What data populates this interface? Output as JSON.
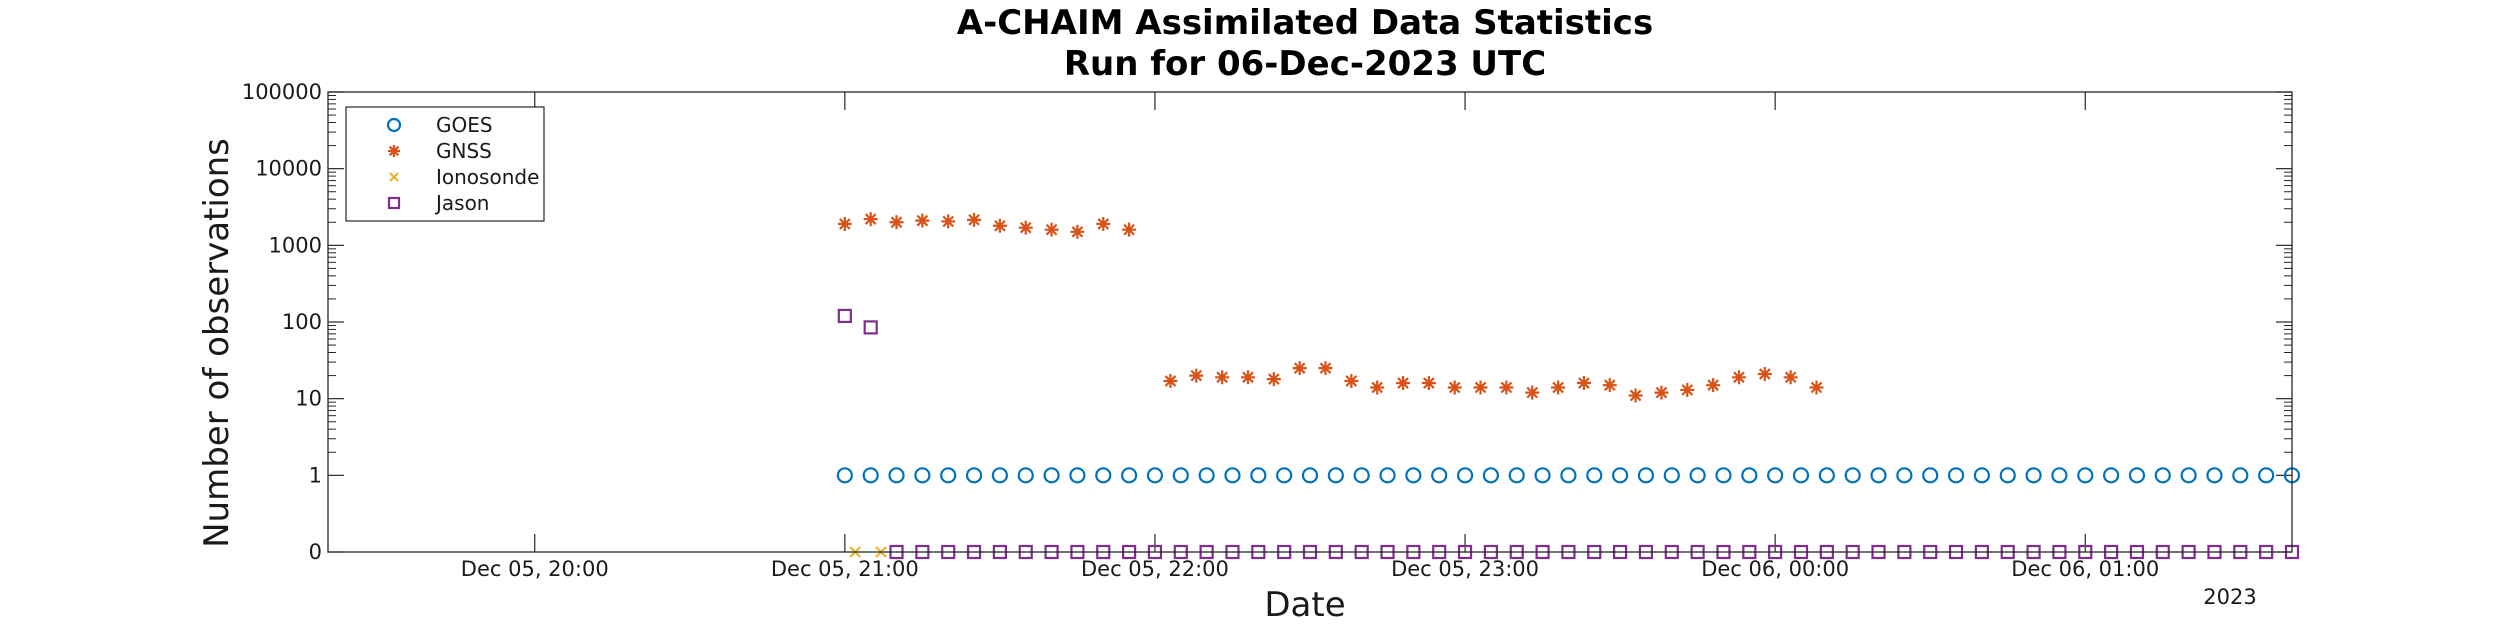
{
  "chart_data": {
    "type": "scatter",
    "title": "A-CHAIM Assimilated Data Statistics",
    "subtitle": "Run for 06-Dec-2023 UTC",
    "xlabel": "Date",
    "ylabel": "Number of observations",
    "x_year_label": "2023",
    "x_range": [
      "2023-12-05 19:20",
      "2023-12-06 01:40"
    ],
    "x_ticks": [
      {
        "t": "2023-12-05 20:00",
        "label": "Dec 05, 20:00"
      },
      {
        "t": "2023-12-05 21:00",
        "label": "Dec 05, 21:00"
      },
      {
        "t": "2023-12-05 22:00",
        "label": "Dec 05, 22:00"
      },
      {
        "t": "2023-12-05 23:00",
        "label": "Dec 05, 23:00"
      },
      {
        "t": "2023-12-06 00:00",
        "label": "Dec 06, 00:00"
      },
      {
        "t": "2023-12-06 01:00",
        "label": "Dec 06, 01:00"
      }
    ],
    "y_scale": "log with zero baseline",
    "y_ticks": [
      "0",
      "1",
      "10",
      "100",
      "1000",
      "10000",
      "100000"
    ],
    "ylim": [
      0,
      100000
    ],
    "legend_position": "top-left",
    "grid": false,
    "series": [
      {
        "name": "GOES",
        "marker": "circle",
        "color": "#0072bd",
        "points": [
          [
            "2023-12-05 21:00",
            1
          ],
          [
            "2023-12-05 21:05",
            1
          ],
          [
            "2023-12-05 21:10",
            1
          ],
          [
            "2023-12-05 21:15",
            1
          ],
          [
            "2023-12-05 21:20",
            1
          ],
          [
            "2023-12-05 21:25",
            1
          ],
          [
            "2023-12-05 21:30",
            1
          ],
          [
            "2023-12-05 21:35",
            1
          ],
          [
            "2023-12-05 21:40",
            1
          ],
          [
            "2023-12-05 21:45",
            1
          ],
          [
            "2023-12-05 21:50",
            1
          ],
          [
            "2023-12-05 21:55",
            1
          ],
          [
            "2023-12-05 22:00",
            1
          ],
          [
            "2023-12-05 22:05",
            1
          ],
          [
            "2023-12-05 22:10",
            1
          ],
          [
            "2023-12-05 22:15",
            1
          ],
          [
            "2023-12-05 22:20",
            1
          ],
          [
            "2023-12-05 22:25",
            1
          ],
          [
            "2023-12-05 22:30",
            1
          ],
          [
            "2023-12-05 22:35",
            1
          ],
          [
            "2023-12-05 22:40",
            1
          ],
          [
            "2023-12-05 22:45",
            1
          ],
          [
            "2023-12-05 22:50",
            1
          ],
          [
            "2023-12-05 22:55",
            1
          ],
          [
            "2023-12-05 23:00",
            1
          ],
          [
            "2023-12-05 23:05",
            1
          ],
          [
            "2023-12-05 23:10",
            1
          ],
          [
            "2023-12-05 23:15",
            1
          ],
          [
            "2023-12-05 23:20",
            1
          ],
          [
            "2023-12-05 23:25",
            1
          ],
          [
            "2023-12-05 23:30",
            1
          ],
          [
            "2023-12-05 23:35",
            1
          ],
          [
            "2023-12-05 23:40",
            1
          ],
          [
            "2023-12-05 23:45",
            1
          ],
          [
            "2023-12-05 23:50",
            1
          ],
          [
            "2023-12-05 23:55",
            1
          ],
          [
            "2023-12-06 00:00",
            1
          ],
          [
            "2023-12-06 00:05",
            1
          ],
          [
            "2023-12-06 00:10",
            1
          ],
          [
            "2023-12-06 00:15",
            1
          ],
          [
            "2023-12-06 00:20",
            1
          ],
          [
            "2023-12-06 00:25",
            1
          ],
          [
            "2023-12-06 00:30",
            1
          ],
          [
            "2023-12-06 00:35",
            1
          ],
          [
            "2023-12-06 00:40",
            1
          ],
          [
            "2023-12-06 00:45",
            1
          ],
          [
            "2023-12-06 00:50",
            1
          ],
          [
            "2023-12-06 00:55",
            1
          ],
          [
            "2023-12-06 01:00",
            1
          ],
          [
            "2023-12-06 01:05",
            1
          ],
          [
            "2023-12-06 01:10",
            1
          ],
          [
            "2023-12-06 01:15",
            1
          ],
          [
            "2023-12-06 01:20",
            1
          ],
          [
            "2023-12-06 01:25",
            1
          ],
          [
            "2023-12-06 01:30",
            1
          ],
          [
            "2023-12-06 01:35",
            1
          ],
          [
            "2023-12-06 01:40",
            1
          ]
        ]
      },
      {
        "name": "GNSS",
        "marker": "asterisk",
        "color": "#d95319",
        "points": [
          [
            "2023-12-05 21:00",
            1900
          ],
          [
            "2023-12-05 21:05",
            2200
          ],
          [
            "2023-12-05 21:10",
            2000
          ],
          [
            "2023-12-05 21:15",
            2100
          ],
          [
            "2023-12-05 21:20",
            2050
          ],
          [
            "2023-12-05 21:25",
            2150
          ],
          [
            "2023-12-05 21:30",
            1800
          ],
          [
            "2023-12-05 21:35",
            1700
          ],
          [
            "2023-12-05 21:40",
            1600
          ],
          [
            "2023-12-05 21:45",
            1500
          ],
          [
            "2023-12-05 21:50",
            1900
          ],
          [
            "2023-12-05 21:55",
            1600
          ],
          [
            "2023-12-05 22:03",
            17
          ],
          [
            "2023-12-05 22:08",
            20
          ],
          [
            "2023-12-05 22:13",
            19
          ],
          [
            "2023-12-05 22:18",
            19
          ],
          [
            "2023-12-05 22:23",
            18
          ],
          [
            "2023-12-05 22:28",
            25
          ],
          [
            "2023-12-05 22:33",
            25
          ],
          [
            "2023-12-05 22:38",
            17
          ],
          [
            "2023-12-05 22:43",
            14
          ],
          [
            "2023-12-05 22:48",
            16
          ],
          [
            "2023-12-05 22:53",
            16
          ],
          [
            "2023-12-05 22:58",
            14
          ],
          [
            "2023-12-05 23:03",
            14
          ],
          [
            "2023-12-05 23:08",
            14
          ],
          [
            "2023-12-05 23:13",
            12
          ],
          [
            "2023-12-05 23:18",
            14
          ],
          [
            "2023-12-05 23:23",
            16
          ],
          [
            "2023-12-05 23:28",
            15
          ],
          [
            "2023-12-05 23:33",
            11
          ],
          [
            "2023-12-05 23:38",
            12
          ],
          [
            "2023-12-05 23:43",
            13
          ],
          [
            "2023-12-05 23:48",
            15
          ],
          [
            "2023-12-05 23:53",
            19
          ],
          [
            "2023-12-05 23:58",
            21
          ],
          [
            "2023-12-06 00:03",
            19
          ],
          [
            "2023-12-06 00:08",
            14
          ]
        ]
      },
      {
        "name": "Ionosonde",
        "marker": "cross",
        "color": "#edb120",
        "points": [
          [
            "2023-12-05 21:02",
            0
          ],
          [
            "2023-12-05 21:07",
            0
          ]
        ]
      },
      {
        "name": "Jason",
        "marker": "square",
        "color": "#7e2f8e",
        "points": [
          [
            "2023-12-05 21:00",
            120
          ],
          [
            "2023-12-05 21:05",
            85
          ],
          [
            "2023-12-05 21:10",
            0
          ],
          [
            "2023-12-05 21:15",
            0
          ],
          [
            "2023-12-05 21:20",
            0
          ],
          [
            "2023-12-05 21:25",
            0
          ],
          [
            "2023-12-05 21:30",
            0
          ],
          [
            "2023-12-05 21:35",
            0
          ],
          [
            "2023-12-05 21:40",
            0
          ],
          [
            "2023-12-05 21:45",
            0
          ],
          [
            "2023-12-05 21:50",
            0
          ],
          [
            "2023-12-05 21:55",
            0
          ],
          [
            "2023-12-05 22:00",
            0
          ],
          [
            "2023-12-05 22:05",
            0
          ],
          [
            "2023-12-05 22:10",
            0
          ],
          [
            "2023-12-05 22:15",
            0
          ],
          [
            "2023-12-05 22:20",
            0
          ],
          [
            "2023-12-05 22:25",
            0
          ],
          [
            "2023-12-05 22:30",
            0
          ],
          [
            "2023-12-05 22:35",
            0
          ],
          [
            "2023-12-05 22:40",
            0
          ],
          [
            "2023-12-05 22:45",
            0
          ],
          [
            "2023-12-05 22:50",
            0
          ],
          [
            "2023-12-05 22:55",
            0
          ],
          [
            "2023-12-05 23:00",
            0
          ],
          [
            "2023-12-05 23:05",
            0
          ],
          [
            "2023-12-05 23:10",
            0
          ],
          [
            "2023-12-05 23:15",
            0
          ],
          [
            "2023-12-05 23:20",
            0
          ],
          [
            "2023-12-05 23:25",
            0
          ],
          [
            "2023-12-05 23:30",
            0
          ],
          [
            "2023-12-05 23:35",
            0
          ],
          [
            "2023-12-05 23:40",
            0
          ],
          [
            "2023-12-05 23:45",
            0
          ],
          [
            "2023-12-05 23:50",
            0
          ],
          [
            "2023-12-05 23:55",
            0
          ],
          [
            "2023-12-06 00:00",
            0
          ],
          [
            "2023-12-06 00:05",
            0
          ],
          [
            "2023-12-06 00:10",
            0
          ],
          [
            "2023-12-06 00:15",
            0
          ],
          [
            "2023-12-06 00:20",
            0
          ],
          [
            "2023-12-06 00:25",
            0
          ],
          [
            "2023-12-06 00:30",
            0
          ],
          [
            "2023-12-06 00:35",
            0
          ],
          [
            "2023-12-06 00:40",
            0
          ],
          [
            "2023-12-06 00:45",
            0
          ],
          [
            "2023-12-06 00:50",
            0
          ],
          [
            "2023-12-06 00:55",
            0
          ],
          [
            "2023-12-06 01:00",
            0
          ],
          [
            "2023-12-06 01:05",
            0
          ],
          [
            "2023-12-06 01:10",
            0
          ],
          [
            "2023-12-06 01:15",
            0
          ],
          [
            "2023-12-06 01:20",
            0
          ],
          [
            "2023-12-06 01:25",
            0
          ],
          [
            "2023-12-06 01:30",
            0
          ],
          [
            "2023-12-06 01:35",
            0
          ],
          [
            "2023-12-06 01:40",
            0
          ]
        ]
      }
    ]
  }
}
